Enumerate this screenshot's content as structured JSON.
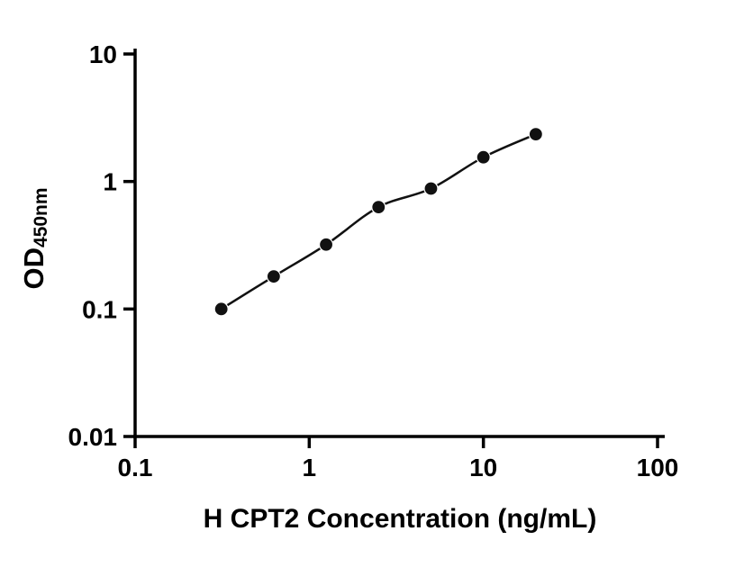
{
  "chart_data": {
    "type": "scatter",
    "x": [
      0.3125,
      0.625,
      1.25,
      2.5,
      5,
      10,
      20
    ],
    "y": [
      0.1,
      0.18,
      0.32,
      0.63,
      0.88,
      1.55,
      2.35
    ],
    "xlabel": "H CPT2 Concentration (ng/mL)",
    "ylabel_main": "OD",
    "ylabel_sub": "450nm",
    "xscale": "log",
    "yscale": "log",
    "xlim": [
      0.1,
      100
    ],
    "ylim": [
      0.01,
      10
    ],
    "x_ticks": [
      "0.1",
      "1",
      "10",
      "100"
    ],
    "y_ticks": [
      "0.01",
      "0.1",
      "1",
      "10"
    ],
    "grid": false,
    "legend": false,
    "marker_color": "#111111",
    "line_color": "#111111",
    "axis_color": "#000000",
    "background": "#ffffff"
  }
}
